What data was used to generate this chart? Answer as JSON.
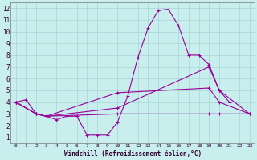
{
  "xlabel": "Windchill (Refroidissement éolien,°C)",
  "background_color": "#c8eeee",
  "grid_color": "#aad4d4",
  "line_color": "#990099",
  "xlim": [
    -0.5,
    23.5
  ],
  "ylim": [
    0.5,
    12.5
  ],
  "xticks": [
    0,
    1,
    2,
    3,
    4,
    5,
    6,
    7,
    8,
    9,
    10,
    11,
    12,
    13,
    14,
    15,
    16,
    17,
    18,
    19,
    20,
    21,
    22,
    23
  ],
  "yticks": [
    1,
    2,
    3,
    4,
    5,
    6,
    7,
    8,
    9,
    10,
    11,
    12
  ],
  "line1_x": [
    0,
    1,
    2,
    3,
    4,
    5,
    6,
    7,
    8,
    9,
    10,
    11,
    12,
    13,
    14,
    15,
    16,
    17,
    18,
    19,
    20,
    21
  ],
  "line1_y": [
    4.0,
    4.2,
    3.0,
    2.8,
    2.5,
    2.8,
    2.8,
    1.2,
    1.2,
    1.2,
    2.3,
    4.5,
    7.8,
    10.3,
    11.8,
    11.9,
    10.5,
    8.0,
    8.0,
    7.2,
    5.0,
    4.0
  ],
  "line2_x": [
    0,
    2,
    3,
    10,
    19,
    20,
    23
  ],
  "line2_y": [
    4.0,
    3.0,
    2.8,
    3.5,
    7.0,
    5.0,
    3.0
  ],
  "line3_x": [
    0,
    2,
    3,
    10,
    19,
    20,
    23
  ],
  "line3_y": [
    4.0,
    3.0,
    2.8,
    4.8,
    5.2,
    4.0,
    3.0
  ],
  "line4_x": [
    0,
    2,
    3,
    10,
    19,
    20,
    23
  ],
  "line4_y": [
    4.0,
    3.0,
    2.8,
    3.0,
    3.0,
    3.0,
    3.0
  ]
}
